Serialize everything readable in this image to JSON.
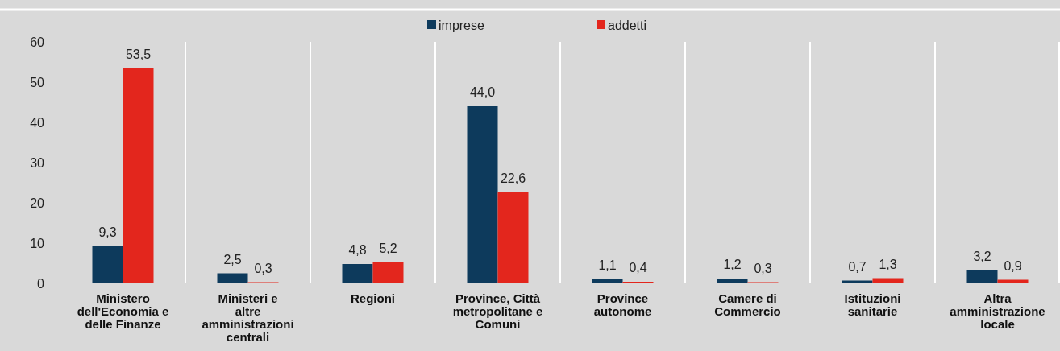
{
  "chart_data": {
    "type": "bar",
    "categories": [
      "Ministero dell'Economia e delle Finanze",
      "Ministeri e altre amministrazioni centrali",
      "Regioni",
      "Province, Città metropolitane e Comuni",
      "Province autonome",
      "Camere di Commercio",
      "Istituzioni sanitarie",
      "Altra amministrazione locale"
    ],
    "series": [
      {
        "name": "imprese",
        "color": "#0d3a5c",
        "values": [
          9.3,
          2.5,
          4.8,
          44.0,
          1.1,
          1.2,
          0.7,
          3.2
        ],
        "value_labels": [
          "9,3",
          "2,5",
          "4,8",
          "44,0",
          "1,1",
          "1,2",
          "0,7",
          "3,2"
        ]
      },
      {
        "name": "addetti",
        "color": "#e3261d",
        "values": [
          53.5,
          0.3,
          5.2,
          22.6,
          0.4,
          0.3,
          1.3,
          0.9
        ],
        "value_labels": [
          "53,5",
          "0,3",
          "5,2",
          "22,6",
          "0,4",
          "0,3",
          "1,3",
          "0,9"
        ]
      }
    ],
    "ylim": [
      0,
      60
    ],
    "yticks": [
      0,
      10,
      20,
      30,
      40,
      50,
      60
    ],
    "grid": "x",
    "legend": "top"
  }
}
